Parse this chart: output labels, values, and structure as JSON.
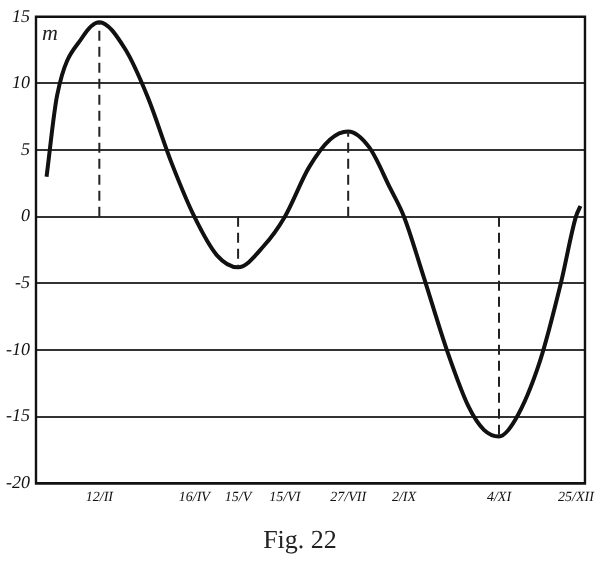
{
  "chart_data": {
    "type": "line",
    "ylabel": "m",
    "annotations": [
      "Fig. 22"
    ],
    "x": [
      "--01-08",
      "--01-15",
      "--02-01",
      "--02-12",
      "--03-01",
      "--03-16",
      "--04-01",
      "--04-16",
      "--05-01",
      "--05-15",
      "--06-01",
      "--06-15",
      "--07-01",
      "--07-15",
      "--07-27",
      "--08-10",
      "--08-24",
      "--09-02",
      "--09-15",
      "--10-01",
      "--10-15",
      "--10-25",
      "--11-04",
      "--11-15",
      "--12-01",
      "--12-15",
      "--12-25",
      "--12-28"
    ],
    "series": [
      {
        "color": "#111111",
        "values": [
          3.0,
          9.1,
          13.5,
          14.6,
          12.6,
          9.0,
          4.0,
          0,
          -2.9,
          -3.8,
          -2.2,
          0,
          3.7,
          5.8,
          6.4,
          5.2,
          2.1,
          0,
          -4.5,
          -10.2,
          -14.3,
          -16.0,
          -16.5,
          -15.2,
          -10.9,
          -5.0,
          0,
          0.8
        ]
      }
    ],
    "xlim": [
      "--01-01",
      "--12-31"
    ],
    "xticks": [
      {
        "value": "--02-12",
        "label": "12/II"
      },
      {
        "value": "--04-16",
        "label": "16/IV"
      },
      {
        "value": "--05-15",
        "label": "15/V"
      },
      {
        "value": "--06-15",
        "label": "15/VI"
      },
      {
        "value": "--07-27",
        "label": "27/VII"
      },
      {
        "value": "--09-02",
        "label": "2/IX"
      },
      {
        "value": "--11-04",
        "label": "4/XI"
      },
      {
        "value": "--12-25",
        "label": "25/XII"
      }
    ],
    "ylim": [
      -20,
      15
    ],
    "yticks": [
      15,
      10,
      5,
      0,
      -5,
      -10,
      -15,
      -20
    ],
    "ref_lines": [
      {
        "axis": "x",
        "value": "--02-12",
        "line_style": "dashed"
      },
      {
        "axis": "x",
        "value": "--05-15",
        "line_style": "dashed"
      },
      {
        "axis": "x",
        "value": "--07-27",
        "line_style": "dashed"
      },
      {
        "axis": "x",
        "value": "--11-04",
        "line_style": "dashed"
      }
    ],
    "grid": "y",
    "legend": false,
    "marker": "none",
    "line_style": "solid"
  }
}
